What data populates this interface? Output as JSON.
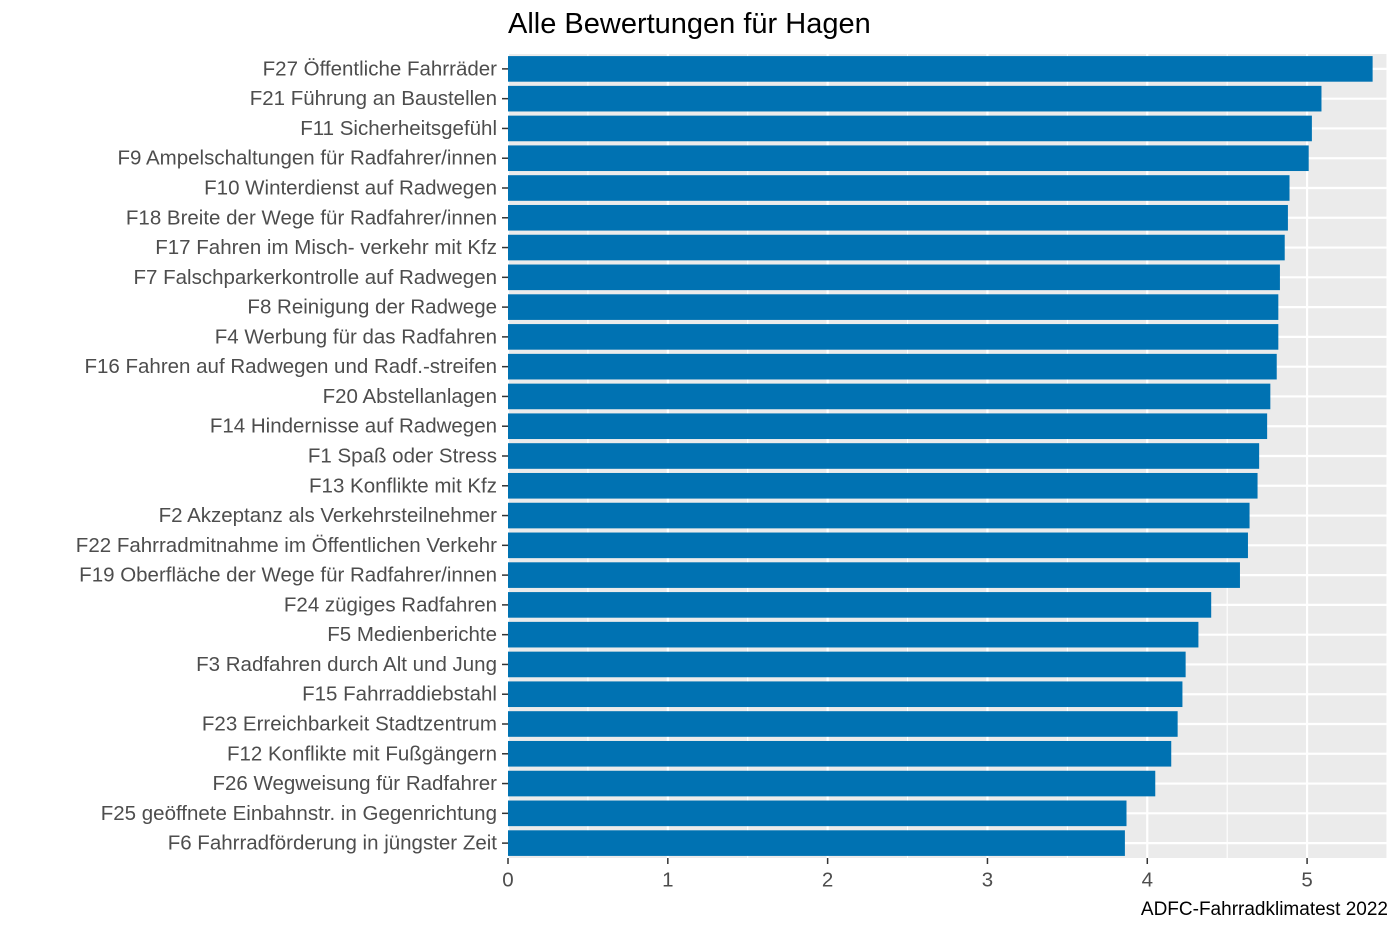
{
  "chart_data": {
    "type": "bar",
    "orientation": "horizontal",
    "title": "Alle Bewertungen für Hagen",
    "caption": "ADFC-Fahrradklimatest 2022",
    "xlabel": "",
    "ylabel": "",
    "xlim": [
      0,
      5.5
    ],
    "xticks": [
      0,
      1,
      2,
      3,
      4,
      5
    ],
    "grid": true,
    "legend": "none",
    "bar_color": "#0072b2",
    "panel_color": "#ebebeb",
    "categories": [
      "F27 Öffentliche Fahrräder",
      "F21 Führung an Baustellen",
      "F11 Sicherheitsgefühl",
      "F9 Ampelschaltungen für Radfahrer/innen",
      "F10 Winterdienst auf Radwegen",
      "F18 Breite der Wege für Radfahrer/innen",
      "F17 Fahren im Misch- verkehr mit Kfz",
      "F7 Falschparkerkontrolle auf Radwegen",
      "F8 Reinigung der Radwege",
      "F4 Werbung für das Radfahren",
      "F16 Fahren auf Radwegen und Radf.-streifen",
      "F20 Abstellanlagen",
      "F14 Hindernisse auf Radwegen",
      "F1 Spaß oder Stress",
      "F13 Konflikte mit Kfz",
      "F2 Akzeptanz als Verkehrsteilnehmer",
      "F22 Fahrradmitnahme im Öffentlichen Verkehr",
      "F19 Oberfläche der Wege für Radfahrer/innen",
      "F24 zügiges Radfahren",
      "F5 Medienberichte",
      "F3 Radfahren durch Alt und Jung",
      "F15 Fahrraddiebstahl",
      "F23 Erreichbarkeit Stadtzentrum",
      "F12 Konflikte mit Fußgängern",
      "F26 Wegweisung für Radfahrer",
      "F25 geöffnete Einbahnstr. in Gegenrichtung",
      "F6 Fahrradförderung in jüngster Zeit"
    ],
    "values": [
      5.41,
      5.09,
      5.03,
      5.01,
      4.89,
      4.88,
      4.86,
      4.83,
      4.82,
      4.82,
      4.81,
      4.77,
      4.75,
      4.7,
      4.69,
      4.64,
      4.63,
      4.58,
      4.4,
      4.32,
      4.24,
      4.22,
      4.19,
      4.15,
      4.05,
      3.87,
      3.86
    ]
  }
}
